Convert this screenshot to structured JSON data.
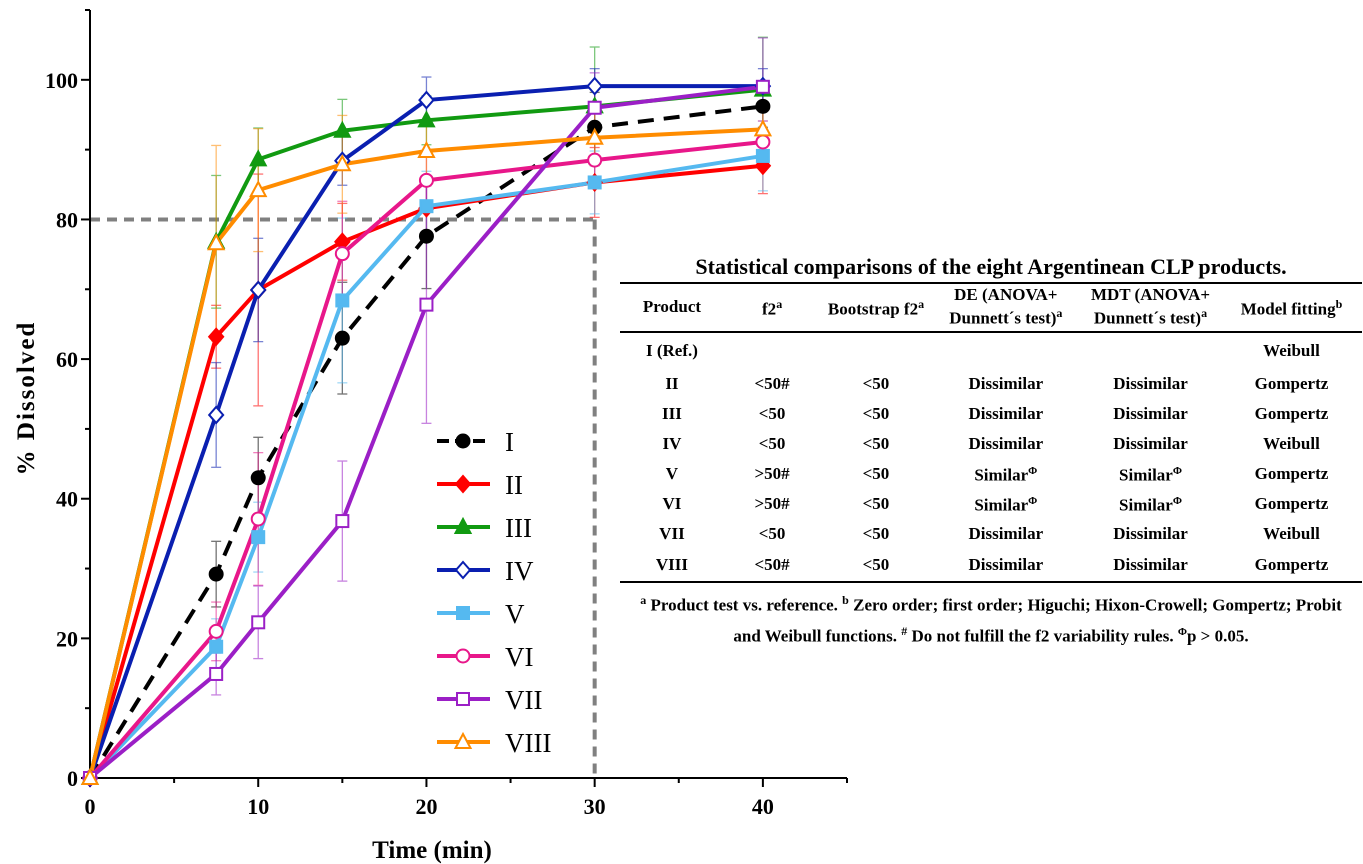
{
  "chart_data": {
    "type": "line",
    "xlabel": "Time (min)",
    "ylabel": "% Dissolved",
    "xlim": [
      0,
      45
    ],
    "ylim": [
      0,
      110
    ],
    "xticks": [
      0,
      10,
      20,
      30,
      40
    ],
    "yticks": [
      0,
      20,
      40,
      60,
      80,
      100
    ],
    "reference_line": {
      "value_y": 80,
      "value_x": 30,
      "style": "dashed",
      "color": "#808080"
    },
    "legend_position": "center",
    "series": [
      {
        "name": "I",
        "color": "#000000",
        "marker": "circle-filled",
        "dashed": true,
        "x": [
          0,
          7.5,
          10,
          15,
          20,
          30,
          40
        ],
        "y": [
          0,
          29.2,
          43,
          63,
          77.6,
          93.2,
          96.2
        ],
        "err": [
          0,
          4.7,
          5.8,
          8,
          7.5,
          5,
          3
        ]
      },
      {
        "name": "II",
        "color": "#ff0000",
        "marker": "diamond-filled",
        "dashed": false,
        "x": [
          0,
          7.5,
          10,
          15,
          20,
          30,
          40
        ],
        "y": [
          0,
          63.2,
          69.9,
          76.8,
          81.6,
          85.3,
          87.7
        ],
        "err": [
          0,
          4.5,
          16.6,
          5.5,
          4,
          5,
          4
        ]
      },
      {
        "name": "III",
        "color": "#119a11",
        "marker": "triangle-filled",
        "dashed": false,
        "x": [
          0,
          7.5,
          10,
          15,
          20,
          30,
          40
        ],
        "y": [
          0,
          76.8,
          88.6,
          92.7,
          94.2,
          96.2,
          98.6
        ],
        "err": [
          0,
          9.5,
          4.5,
          4.5,
          3.5,
          8.5,
          7.5
        ]
      },
      {
        "name": "IV",
        "color": "#0a1fb0",
        "marker": "diamond-open",
        "dashed": false,
        "x": [
          0,
          7.5,
          10,
          15,
          20,
          30,
          40
        ],
        "y": [
          0,
          52,
          69.9,
          88.4,
          97.1,
          99.1,
          99.1
        ],
        "err": [
          0,
          7.5,
          7.4,
          3.5,
          3.3,
          2.5,
          2.5
        ]
      },
      {
        "name": "V",
        "color": "#55b9f0",
        "marker": "square-filled",
        "dashed": false,
        "x": [
          0,
          7.5,
          10,
          15,
          20,
          30,
          40
        ],
        "y": [
          0,
          18.8,
          34.5,
          68.4,
          81.9,
          85.3,
          89.1
        ],
        "err": [
          0,
          4,
          5,
          11.8,
          5,
          4.5,
          5
        ]
      },
      {
        "name": "VI",
        "color": "#e8178a",
        "marker": "circle-open",
        "dashed": false,
        "x": [
          0,
          7.5,
          10,
          15,
          20,
          30,
          40
        ],
        "y": [
          0,
          21,
          37.1,
          75.1,
          85.6,
          88.5,
          91.1
        ],
        "err": [
          0,
          4.2,
          9.5,
          7.5,
          4,
          3.5,
          3
        ]
      },
      {
        "name": "VII",
        "color": "#9b1fc6",
        "marker": "square-open",
        "dashed": false,
        "x": [
          0,
          7.5,
          10,
          15,
          20,
          30,
          40
        ],
        "y": [
          0,
          14.9,
          22.3,
          36.8,
          67.8,
          96,
          99
        ],
        "err": [
          0,
          3,
          5.2,
          8.6,
          17,
          5,
          7
        ]
      },
      {
        "name": "VIII",
        "color": "#ff8c00",
        "marker": "triangle-open",
        "dashed": false,
        "x": [
          0,
          7.5,
          10,
          15,
          20,
          30,
          40
        ],
        "y": [
          0,
          76.6,
          84.2,
          87.9,
          89.8,
          91.7,
          92.9
        ],
        "err": [
          0,
          14,
          8.8,
          7,
          4,
          3.5,
          3
        ]
      }
    ]
  },
  "table": {
    "title": "Statistical comparisons of the eight Argentinean CLP products.",
    "headers": [
      {
        "main": "Product",
        "sup": ""
      },
      {
        "main": "f2",
        "sup": "a"
      },
      {
        "main": "Bootstrap f2",
        "sup": "a"
      },
      {
        "main": "DE (ANOVA+ Dunnett´s test)",
        "sup": "a"
      },
      {
        "main": "MDT (ANOVA+ Dunnett´s test)",
        "sup": "a"
      },
      {
        "main": "Model fitting",
        "sup": "b"
      }
    ],
    "rows": [
      {
        "product": "I (Ref.)",
        "f2": "",
        "bootstrap": "",
        "de": "",
        "de_sup": "",
        "mdt": "",
        "mdt_sup": "",
        "model": "Weibull"
      },
      {
        "product": "II",
        "f2": "<50#",
        "bootstrap": "<50",
        "de": "Dissimilar",
        "de_sup": "",
        "mdt": "Dissimilar",
        "mdt_sup": "",
        "model": "Gompertz"
      },
      {
        "product": "III",
        "f2": "<50",
        "bootstrap": "<50",
        "de": "Dissimilar",
        "de_sup": "",
        "mdt": "Dissimilar",
        "mdt_sup": "",
        "model": "Gompertz"
      },
      {
        "product": "IV",
        "f2": "<50",
        "bootstrap": "<50",
        "de": "Dissimilar",
        "de_sup": "",
        "mdt": "Dissimilar",
        "mdt_sup": "",
        "model": "Weibull"
      },
      {
        "product": "V",
        "f2": ">50#",
        "bootstrap": "<50",
        "de": "Similar",
        "de_sup": "Φ",
        "mdt": "Similar",
        "mdt_sup": "Φ",
        "model": "Gompertz"
      },
      {
        "product": "VI",
        "f2": ">50#",
        "bootstrap": "<50",
        "de": "Similar",
        "de_sup": "Φ",
        "mdt": "Similar",
        "mdt_sup": "Φ",
        "model": "Gompertz"
      },
      {
        "product": "VII",
        "f2": "<50",
        "bootstrap": "<50",
        "de": "Dissimilar",
        "de_sup": "",
        "mdt": "Dissimilar",
        "mdt_sup": "",
        "model": "Weibull"
      },
      {
        "product": "VIII",
        "f2": "<50#",
        "bootstrap": "<50",
        "de": "Dissimilar",
        "de_sup": "",
        "mdt": "Dissimilar",
        "mdt_sup": "",
        "model": "Gompertz"
      }
    ],
    "footnote": {
      "a_mark": "a",
      "a_text": " Product test vs. reference. ",
      "b_mark": "b",
      "b_text": " Zero order; first order; Higuchi; Hixon-Crowell; Gompertz; Probit and Weibull functions. ",
      "hash_mark": "#",
      "hash_text": " Do not fulfill the f2 variability rules. ",
      "phi_mark": "Φ",
      "phi_text": "p > 0.05."
    }
  }
}
